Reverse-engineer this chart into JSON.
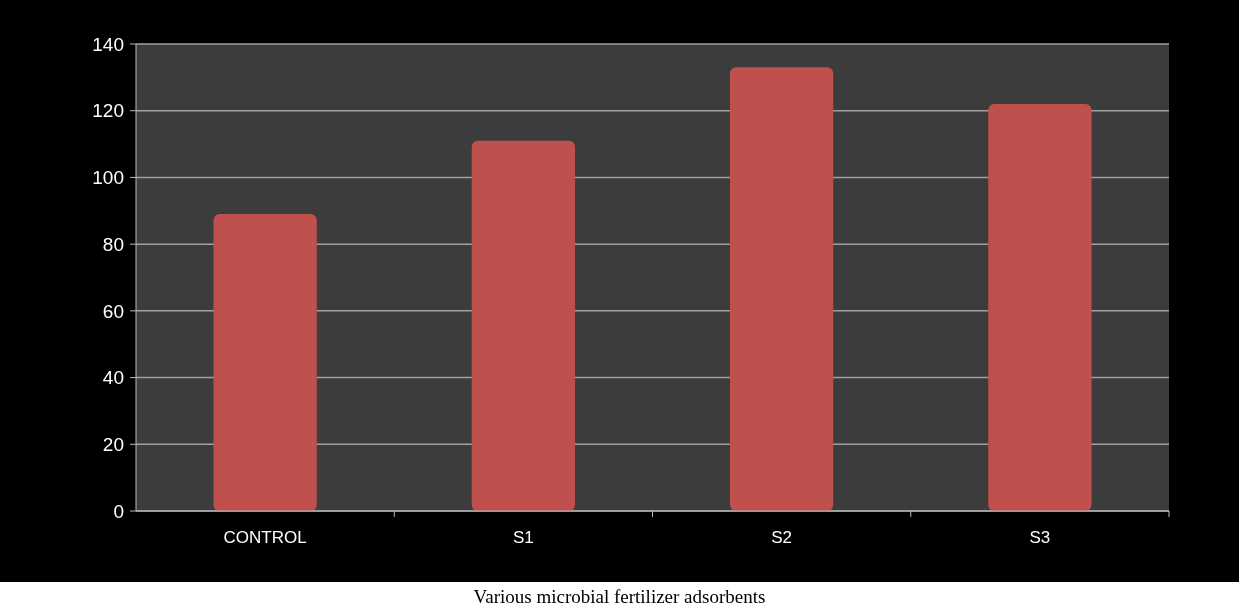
{
  "chart_data": {
    "type": "bar",
    "xlabel": "Various microbial fertilizer adsorbents",
    "categories": [
      "CONTROL",
      "S1",
      "S2",
      "S3"
    ],
    "values": [
      89,
      111,
      133,
      122
    ],
    "color": "#c0504d",
    "ylim": [
      0,
      140
    ],
    "yticks": [
      0,
      20,
      40,
      60,
      80,
      100,
      120,
      140
    ],
    "grid": "y"
  }
}
